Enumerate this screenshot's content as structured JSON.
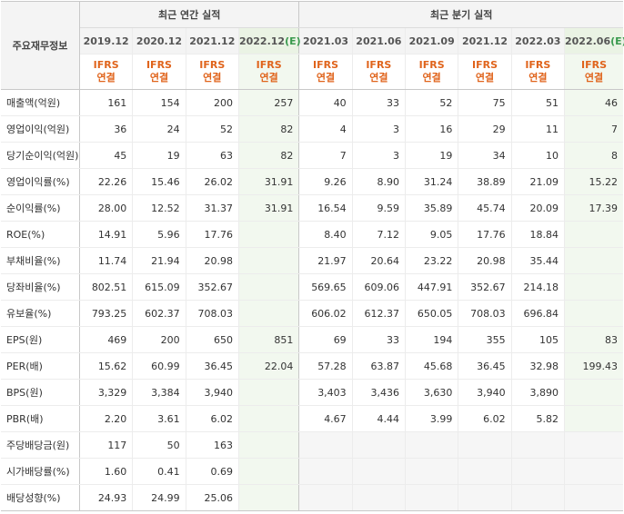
{
  "header": {
    "corner": "주요재무정보",
    "annual_group": "최근 연간 실적",
    "quarterly_group": "최근 분기 실적"
  },
  "annual_periods": [
    {
      "label": "2019.12",
      "std1": "IFRS",
      "std2": "연결",
      "estimate": false
    },
    {
      "label": "2020.12",
      "std1": "IFRS",
      "std2": "연결",
      "estimate": false
    },
    {
      "label": "2021.12",
      "std1": "IFRS",
      "std2": "연결",
      "estimate": false
    },
    {
      "label": "2022.12",
      "tag": "(E)",
      "std1": "IFRS",
      "std2": "연결",
      "estimate": true
    }
  ],
  "quarterly_periods": [
    {
      "label": "2021.03",
      "std1": "IFRS",
      "std2": "연결",
      "estimate": false
    },
    {
      "label": "2021.06",
      "std1": "IFRS",
      "std2": "연결",
      "estimate": false
    },
    {
      "label": "2021.09",
      "std1": "IFRS",
      "std2": "연결",
      "estimate": false
    },
    {
      "label": "2021.12",
      "std1": "IFRS",
      "std2": "연결",
      "estimate": false
    },
    {
      "label": "2022.03",
      "std1": "IFRS",
      "std2": "연결",
      "estimate": false
    },
    {
      "label": "2022.06",
      "tag": "(E)",
      "std1": "IFRS",
      "std2": "연결",
      "estimate": true
    }
  ],
  "rows": [
    {
      "label": "매출액(억원)",
      "annual": [
        "161",
        "154",
        "200",
        "257"
      ],
      "quarterly": [
        "40",
        "33",
        "52",
        "75",
        "51",
        "46"
      ]
    },
    {
      "label": "영업이익(억원)",
      "annual": [
        "36",
        "24",
        "52",
        "82"
      ],
      "quarterly": [
        "4",
        "3",
        "16",
        "29",
        "11",
        "7"
      ]
    },
    {
      "label": "당기순이익(억원)",
      "annual": [
        "45",
        "19",
        "63",
        "82"
      ],
      "quarterly": [
        "7",
        "3",
        "19",
        "34",
        "10",
        "8"
      ]
    },
    {
      "label": "영업이익률(%)",
      "annual": [
        "22.26",
        "15.46",
        "26.02",
        "31.91"
      ],
      "quarterly": [
        "9.26",
        "8.90",
        "31.24",
        "38.89",
        "21.09",
        "15.22"
      ]
    },
    {
      "label": "순이익률(%)",
      "annual": [
        "28.00",
        "12.52",
        "31.37",
        "31.91"
      ],
      "quarterly": [
        "16.54",
        "9.59",
        "35.89",
        "45.74",
        "20.09",
        "17.39"
      ]
    },
    {
      "label": "ROE(%)",
      "annual": [
        "14.91",
        "5.96",
        "17.76",
        ""
      ],
      "quarterly": [
        "8.40",
        "7.12",
        "9.05",
        "17.76",
        "18.84",
        ""
      ]
    },
    {
      "label": "부채비율(%)",
      "annual": [
        "11.74",
        "21.94",
        "20.98",
        ""
      ],
      "quarterly": [
        "21.97",
        "20.64",
        "23.22",
        "20.98",
        "35.44",
        ""
      ]
    },
    {
      "label": "당좌비율(%)",
      "annual": [
        "802.51",
        "615.09",
        "352.67",
        ""
      ],
      "quarterly": [
        "569.65",
        "609.06",
        "447.91",
        "352.67",
        "214.18",
        ""
      ]
    },
    {
      "label": "유보율(%)",
      "annual": [
        "793.25",
        "602.37",
        "708.03",
        ""
      ],
      "quarterly": [
        "606.02",
        "612.37",
        "650.05",
        "708.03",
        "696.84",
        ""
      ]
    },
    {
      "label": "EPS(원)",
      "annual": [
        "469",
        "200",
        "650",
        "851"
      ],
      "quarterly": [
        "69",
        "33",
        "194",
        "355",
        "105",
        "83"
      ]
    },
    {
      "label": "PER(배)",
      "annual": [
        "15.62",
        "60.99",
        "36.45",
        "22.04"
      ],
      "quarterly": [
        "57.28",
        "63.87",
        "45.68",
        "36.45",
        "32.98",
        "199.43"
      ]
    },
    {
      "label": "BPS(원)",
      "annual": [
        "3,329",
        "3,384",
        "3,940",
        ""
      ],
      "quarterly": [
        "3,403",
        "3,436",
        "3,630",
        "3,940",
        "3,890",
        ""
      ]
    },
    {
      "label": "PBR(배)",
      "annual": [
        "2.20",
        "3.61",
        "6.02",
        ""
      ],
      "quarterly": [
        "4.67",
        "4.44",
        "3.99",
        "6.02",
        "5.82",
        ""
      ]
    },
    {
      "label": "주당배당금(원)",
      "annual": [
        "117",
        "50",
        "163",
        ""
      ],
      "quarterly": [
        "",
        "",
        "",
        "",
        "",
        ""
      ],
      "quarterly_empty": true
    },
    {
      "label": "시가배당률(%)",
      "annual": [
        "1.60",
        "0.41",
        "0.69",
        ""
      ],
      "quarterly": [
        "",
        "",
        "",
        "",
        "",
        ""
      ],
      "quarterly_empty": true
    },
    {
      "label": "배당성향(%)",
      "annual": [
        "24.93",
        "24.99",
        "25.06",
        ""
      ],
      "quarterly": [
        "",
        "",
        "",
        "",
        "",
        ""
      ],
      "quarterly_empty": true
    }
  ],
  "section_breaks": [
    3,
    6,
    9,
    13
  ]
}
